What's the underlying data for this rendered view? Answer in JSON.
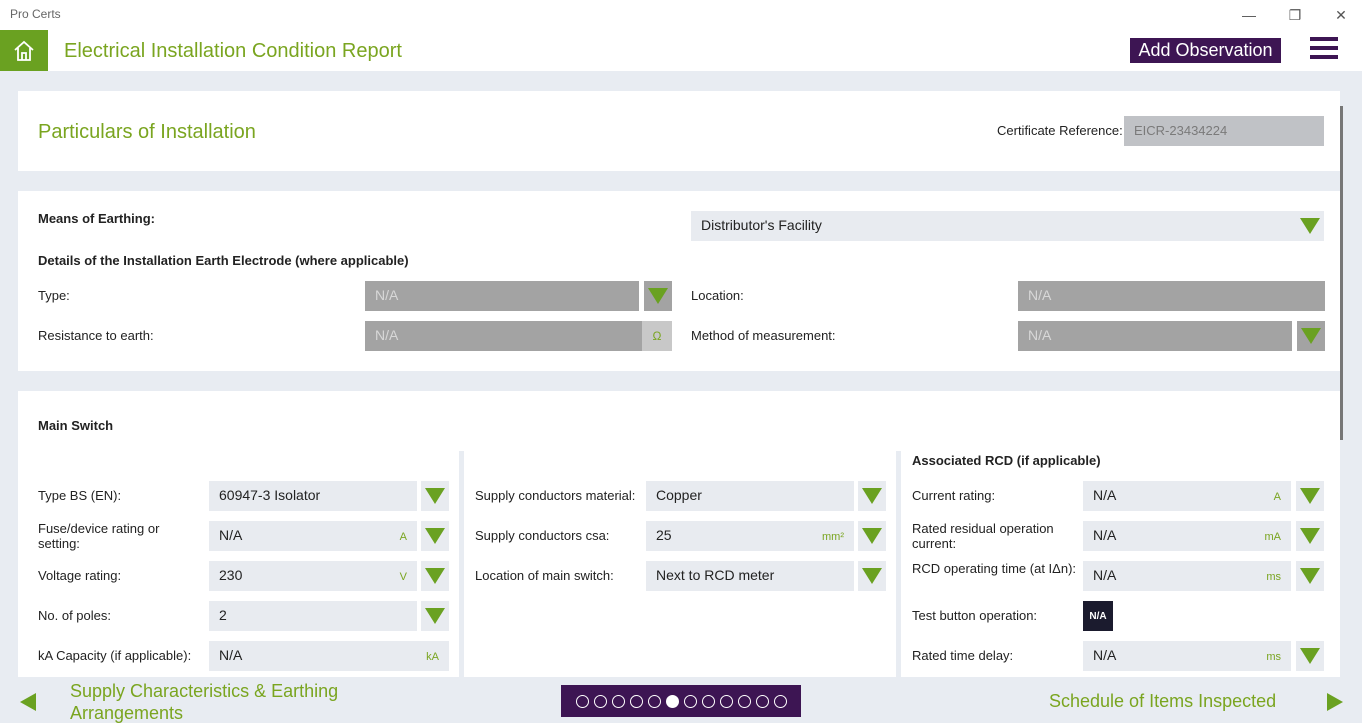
{
  "app": {
    "name": "Pro Certs"
  },
  "header": {
    "title": "Electrical Installation Condition Report",
    "add_observation": "Add Observation"
  },
  "particulars": {
    "title": "Particulars of Installation",
    "cert_ref_label": "Certificate Reference:",
    "cert_ref_value": "EICR-23434224"
  },
  "earthing": {
    "means_label": "Means of Earthing:",
    "means_value": "Distributor's Facility",
    "electrode_heading": "Details of the Installation Earth Electrode (where applicable)",
    "type_label": "Type:",
    "type_value": "N/A",
    "location_label": "Location:",
    "location_value": "N/A",
    "resistance_label": "Resistance to earth:",
    "resistance_value": "N/A",
    "resistance_unit": "Ω",
    "method_label": "Method of measurement:",
    "method_value": "N/A"
  },
  "main_switch": {
    "heading": "Main Switch",
    "type_label": "Type BS (EN):",
    "type_value": "60947-3 Isolator",
    "fuse_label": "Fuse/device rating or setting:",
    "fuse_value": "N/A",
    "fuse_unit": "A",
    "voltage_label": "Voltage rating:",
    "voltage_value": "230",
    "voltage_unit": "V",
    "poles_label": "No. of poles:",
    "poles_value": "2",
    "ka_label": "kA Capacity (if applicable):",
    "ka_value": "N/A",
    "ka_unit": "kA",
    "material_label": "Supply conductors material:",
    "material_value": "Copper",
    "csa_label": "Supply conductors csa:",
    "csa_value": "25",
    "csa_unit": "mm²",
    "location_label": "Location of main switch:",
    "location_value": "Next to RCD meter"
  },
  "rcd": {
    "heading": "Associated RCD (if applicable)",
    "current_label": "Current rating:",
    "current_value": "N/A",
    "current_unit": "A",
    "residual_label": "Rated residual operation current:",
    "residual_value": "N/A",
    "residual_unit": "mA",
    "optime_label": "RCD operating time (at IΔn):",
    "optime_value": "N/A",
    "optime_unit": "ms",
    "test_label": "Test button operation:",
    "test_value": "N/A",
    "delay_label": "Rated time delay:",
    "delay_value": "N/A",
    "delay_unit": "ms"
  },
  "footer": {
    "prev_label": "Supply Characteristics & Earthing Arrangements",
    "next_label": "Schedule of Items Inspected",
    "page_count": 12,
    "current_page": 6
  },
  "colors": {
    "accent": "#7aa520",
    "brand": "#3d1553"
  }
}
